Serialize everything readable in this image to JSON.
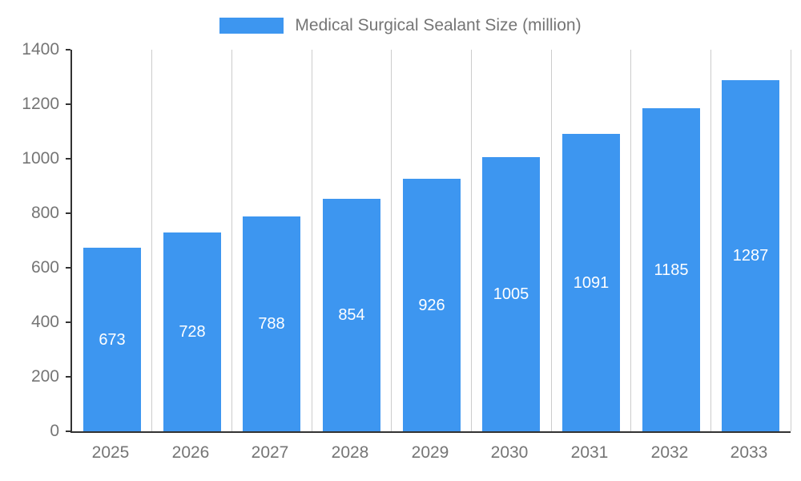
{
  "legend": {
    "label": "Medical Surgical Sealant Size (million)",
    "swatch_color": "#3D96F0"
  },
  "chart_data": {
    "type": "bar",
    "title": "Medical Surgical Sealant Size (million)",
    "categories": [
      "2025",
      "2026",
      "2027",
      "2028",
      "2029",
      "2030",
      "2031",
      "2032",
      "2033"
    ],
    "values": [
      673,
      728,
      788,
      854,
      926,
      1005,
      1091,
      1185,
      1287
    ],
    "xlabel": "",
    "ylabel": "",
    "ylim": [
      0,
      1400
    ],
    "yticks": [
      0,
      200,
      400,
      600,
      800,
      1000,
      1200,
      1400
    ],
    "bar_color": "#3D96F0",
    "value_label_color": "#FFFFFF",
    "axis_text_color": "#757575",
    "axis_line_color": "#333333",
    "gridline_color": "#CCCCCC",
    "grid": "vertical category separators only",
    "legend_position": "top-center",
    "value_labels": "centered inside bars"
  }
}
